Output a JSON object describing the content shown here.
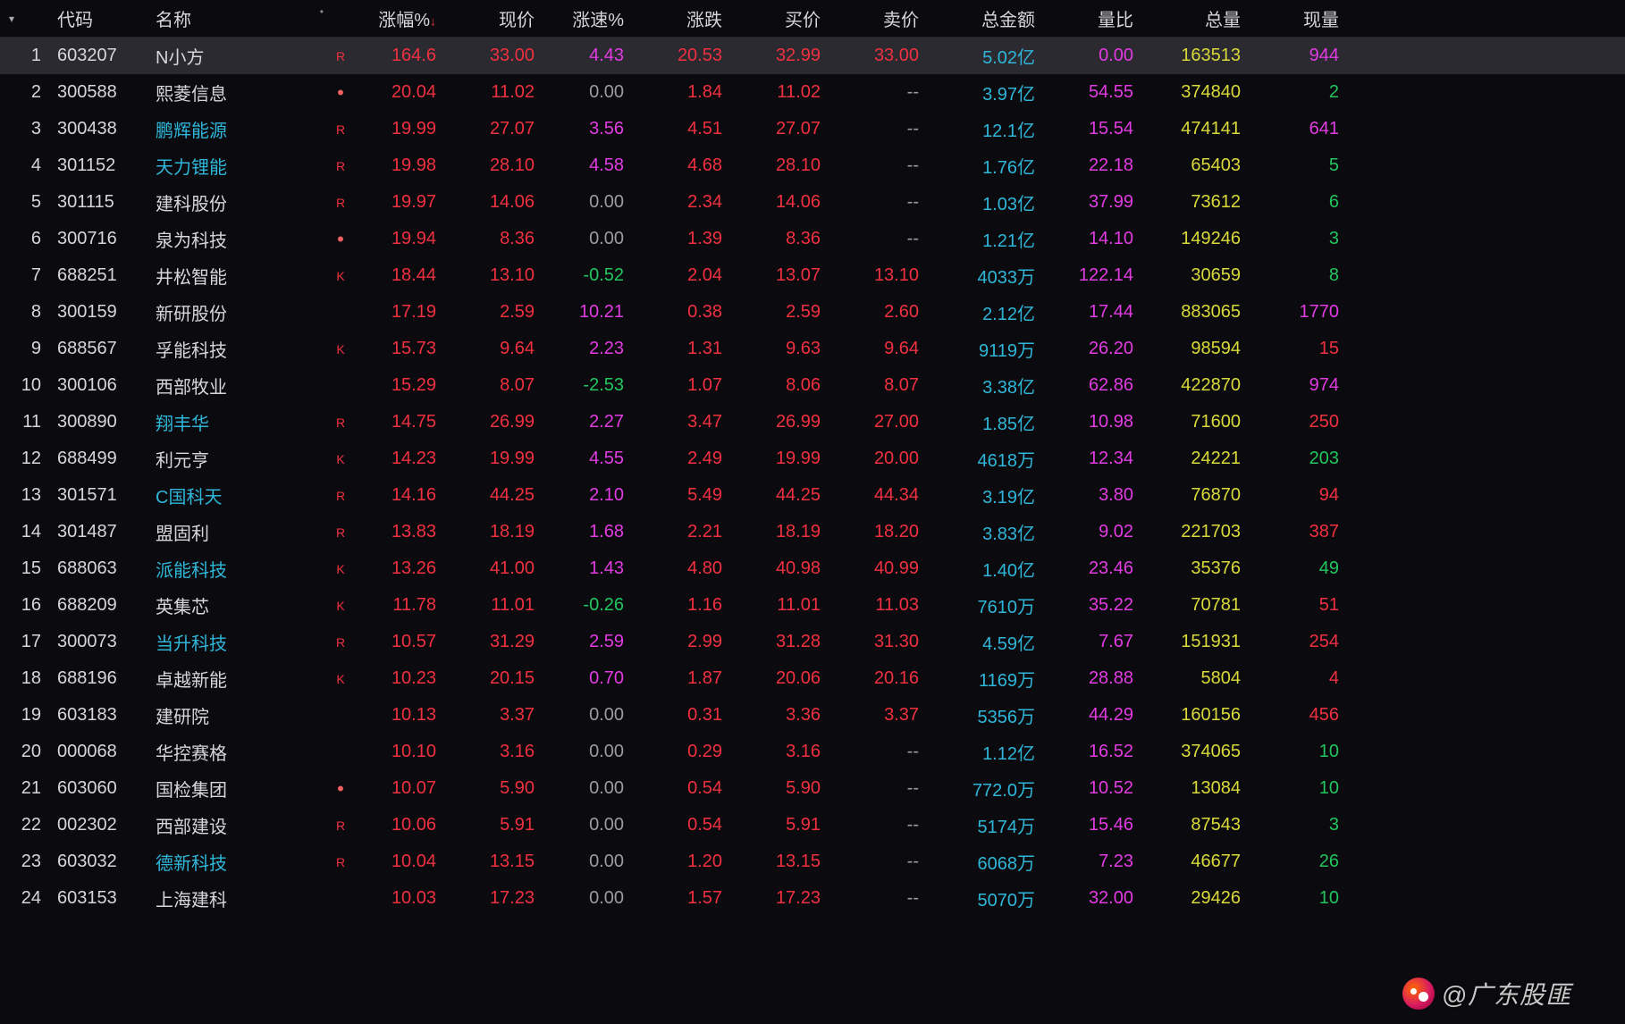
{
  "colors": {
    "bg": "#0b0b0f",
    "text": "#d7d7da",
    "row_highlight": "#2a2a30",
    "red": "#f03040",
    "magenta": "#e23be2",
    "green": "#22c55e",
    "cyan": "#2fb6d9",
    "yellow": "#d9d93a",
    "gray": "#9b9ba0"
  },
  "header": {
    "menu_icon": "▾",
    "code": "代码",
    "name": "名称",
    "name_dot": "•",
    "pct": "涨幅%",
    "sort_icon": "↓",
    "price": "现价",
    "speed": "涨速%",
    "chg": "涨跌",
    "bid": "买价",
    "ask": "卖价",
    "amt": "总金额",
    "ratio": "量比",
    "vol": "总量",
    "cur": "现量"
  },
  "watermark": "@广东股匪",
  "rows": [
    {
      "idx": "1",
      "code": "603207",
      "name": "N小方",
      "name_color": "name-default",
      "flag": "R",
      "pct": "164.6",
      "price": "33.00",
      "speed": "4.43",
      "speed_color": "magenta",
      "chg": "20.53",
      "bid": "32.99",
      "ask": "33.00",
      "ask_color": "red",
      "amt": "5.02亿",
      "ratio": "0.00",
      "vol": "163513",
      "cur": "944",
      "cur_color": "magenta",
      "highlight": true
    },
    {
      "idx": "2",
      "code": "300588",
      "name": "熙菱信息",
      "name_color": "name-default",
      "flag": "•",
      "flag_class": "dot",
      "pct": "20.04",
      "price": "11.02",
      "speed": "0.00",
      "speed_color": "gray",
      "chg": "1.84",
      "bid": "11.02",
      "ask": "--",
      "ask_color": "dash",
      "amt": "3.97亿",
      "ratio": "54.55",
      "vol": "374840",
      "cur": "2",
      "cur_color": "green"
    },
    {
      "idx": "3",
      "code": "300438",
      "name": "鹏辉能源",
      "name_color": "name-link",
      "flag": "R",
      "pct": "19.99",
      "price": "27.07",
      "speed": "3.56",
      "speed_color": "magenta",
      "chg": "4.51",
      "bid": "27.07",
      "ask": "--",
      "ask_color": "dash",
      "amt": "12.1亿",
      "ratio": "15.54",
      "vol": "474141",
      "cur": "641",
      "cur_color": "magenta"
    },
    {
      "idx": "4",
      "code": "301152",
      "name": "天力锂能",
      "name_color": "name-link",
      "flag": "R",
      "pct": "19.98",
      "price": "28.10",
      "speed": "4.58",
      "speed_color": "magenta",
      "chg": "4.68",
      "bid": "28.10",
      "ask": "--",
      "ask_color": "dash",
      "amt": "1.76亿",
      "ratio": "22.18",
      "vol": "65403",
      "cur": "5",
      "cur_color": "green"
    },
    {
      "idx": "5",
      "code": "301115",
      "name": "建科股份",
      "name_color": "name-default",
      "flag": "R",
      "pct": "19.97",
      "price": "14.06",
      "speed": "0.00",
      "speed_color": "gray",
      "chg": "2.34",
      "bid": "14.06",
      "ask": "--",
      "ask_color": "dash",
      "amt": "1.03亿",
      "ratio": "37.99",
      "vol": "73612",
      "cur": "6",
      "cur_color": "green"
    },
    {
      "idx": "6",
      "code": "300716",
      "name": "泉为科技",
      "name_color": "name-default",
      "flag": "•",
      "flag_class": "dot",
      "pct": "19.94",
      "price": "8.36",
      "speed": "0.00",
      "speed_color": "gray",
      "chg": "1.39",
      "bid": "8.36",
      "ask": "--",
      "ask_color": "dash",
      "amt": "1.21亿",
      "ratio": "14.10",
      "vol": "149246",
      "cur": "3",
      "cur_color": "green"
    },
    {
      "idx": "7",
      "code": "688251",
      "name": "井松智能",
      "name_color": "name-default",
      "flag": "K",
      "pct": "18.44",
      "price": "13.10",
      "speed": "-0.52",
      "speed_color": "green",
      "chg": "2.04",
      "bid": "13.07",
      "ask": "13.10",
      "ask_color": "red",
      "amt": "4033万",
      "ratio": "122.14",
      "vol": "30659",
      "cur": "8",
      "cur_color": "green"
    },
    {
      "idx": "8",
      "code": "300159",
      "name": "新研股份",
      "name_color": "name-default",
      "flag": "",
      "pct": "17.19",
      "price": "2.59",
      "speed": "10.21",
      "speed_color": "magenta",
      "chg": "0.38",
      "bid": "2.59",
      "ask": "2.60",
      "ask_color": "red",
      "amt": "2.12亿",
      "ratio": "17.44",
      "vol": "883065",
      "cur": "1770",
      "cur_color": "magenta"
    },
    {
      "idx": "9",
      "code": "688567",
      "name": "孚能科技",
      "name_color": "name-default",
      "flag": "K",
      "pct": "15.73",
      "price": "9.64",
      "speed": "2.23",
      "speed_color": "magenta",
      "chg": "1.31",
      "bid": "9.63",
      "ask": "9.64",
      "ask_color": "red",
      "amt": "9119万",
      "ratio": "26.20",
      "vol": "98594",
      "cur": "15",
      "cur_color": "red"
    },
    {
      "idx": "10",
      "code": "300106",
      "name": "西部牧业",
      "name_color": "name-default",
      "flag": "",
      "pct": "15.29",
      "price": "8.07",
      "speed": "-2.53",
      "speed_color": "green",
      "chg": "1.07",
      "bid": "8.06",
      "ask": "8.07",
      "ask_color": "red",
      "amt": "3.38亿",
      "ratio": "62.86",
      "vol": "422870",
      "cur": "974",
      "cur_color": "magenta"
    },
    {
      "idx": "11",
      "code": "300890",
      "name": "翔丰华",
      "name_color": "name-link",
      "flag": "R",
      "pct": "14.75",
      "price": "26.99",
      "speed": "2.27",
      "speed_color": "magenta",
      "chg": "3.47",
      "bid": "26.99",
      "ask": "27.00",
      "ask_color": "red",
      "amt": "1.85亿",
      "ratio": "10.98",
      "vol": "71600",
      "cur": "250",
      "cur_color": "red"
    },
    {
      "idx": "12",
      "code": "688499",
      "name": "利元亨",
      "name_color": "name-default",
      "flag": "K",
      "pct": "14.23",
      "price": "19.99",
      "speed": "4.55",
      "speed_color": "magenta",
      "chg": "2.49",
      "bid": "19.99",
      "ask": "20.00",
      "ask_color": "red",
      "amt": "4618万",
      "ratio": "12.34",
      "vol": "24221",
      "cur": "203",
      "cur_color": "green"
    },
    {
      "idx": "13",
      "code": "301571",
      "name": "C国科天",
      "name_color": "name-link",
      "flag": "R",
      "pct": "14.16",
      "price": "44.25",
      "speed": "2.10",
      "speed_color": "magenta",
      "chg": "5.49",
      "bid": "44.25",
      "ask": "44.34",
      "ask_color": "red",
      "amt": "3.19亿",
      "ratio": "3.80",
      "vol": "76870",
      "cur": "94",
      "cur_color": "red"
    },
    {
      "idx": "14",
      "code": "301487",
      "name": "盟固利",
      "name_color": "name-default",
      "flag": "R",
      "pct": "13.83",
      "price": "18.19",
      "speed": "1.68",
      "speed_color": "magenta",
      "chg": "2.21",
      "bid": "18.19",
      "ask": "18.20",
      "ask_color": "red",
      "amt": "3.83亿",
      "ratio": "9.02",
      "vol": "221703",
      "cur": "387",
      "cur_color": "red"
    },
    {
      "idx": "15",
      "code": "688063",
      "name": "派能科技",
      "name_color": "name-link",
      "flag": "K",
      "pct": "13.26",
      "price": "41.00",
      "speed": "1.43",
      "speed_color": "magenta",
      "chg": "4.80",
      "bid": "40.98",
      "ask": "40.99",
      "ask_color": "red",
      "amt": "1.40亿",
      "ratio": "23.46",
      "vol": "35376",
      "cur": "49",
      "cur_color": "green"
    },
    {
      "idx": "16",
      "code": "688209",
      "name": "英集芯",
      "name_color": "name-default",
      "flag": "K",
      "pct": "11.78",
      "price": "11.01",
      "speed": "-0.26",
      "speed_color": "green",
      "chg": "1.16",
      "bid": "11.01",
      "ask": "11.03",
      "ask_color": "red",
      "amt": "7610万",
      "ratio": "35.22",
      "vol": "70781",
      "cur": "51",
      "cur_color": "red"
    },
    {
      "idx": "17",
      "code": "300073",
      "name": "当升科技",
      "name_color": "name-link",
      "flag": "R",
      "pct": "10.57",
      "price": "31.29",
      "speed": "2.59",
      "speed_color": "magenta",
      "chg": "2.99",
      "bid": "31.28",
      "ask": "31.30",
      "ask_color": "red",
      "amt": "4.59亿",
      "ratio": "7.67",
      "vol": "151931",
      "cur": "254",
      "cur_color": "red"
    },
    {
      "idx": "18",
      "code": "688196",
      "name": "卓越新能",
      "name_color": "name-default",
      "flag": "K",
      "pct": "10.23",
      "price": "20.15",
      "speed": "0.70",
      "speed_color": "magenta",
      "chg": "1.87",
      "bid": "20.06",
      "ask": "20.16",
      "ask_color": "red",
      "amt": "1169万",
      "ratio": "28.88",
      "vol": "5804",
      "cur": "4",
      "cur_color": "red"
    },
    {
      "idx": "19",
      "code": "603183",
      "name": "建研院",
      "name_color": "name-default",
      "flag": "",
      "pct": "10.13",
      "price": "3.37",
      "speed": "0.00",
      "speed_color": "gray",
      "chg": "0.31",
      "bid": "3.36",
      "ask": "3.37",
      "ask_color": "red",
      "amt": "5356万",
      "ratio": "44.29",
      "vol": "160156",
      "cur": "456",
      "cur_color": "red"
    },
    {
      "idx": "20",
      "code": "000068",
      "name": "华控赛格",
      "name_color": "name-default",
      "flag": "",
      "pct": "10.10",
      "price": "3.16",
      "speed": "0.00",
      "speed_color": "gray",
      "chg": "0.29",
      "bid": "3.16",
      "ask": "--",
      "ask_color": "dash",
      "amt": "1.12亿",
      "ratio": "16.52",
      "vol": "374065",
      "cur": "10",
      "cur_color": "green"
    },
    {
      "idx": "21",
      "code": "603060",
      "name": "国检集团",
      "name_color": "name-default",
      "flag": "•",
      "flag_class": "dot",
      "pct": "10.07",
      "price": "5.90",
      "speed": "0.00",
      "speed_color": "gray",
      "chg": "0.54",
      "bid": "5.90",
      "ask": "--",
      "ask_color": "dash",
      "amt": "772.0万",
      "ratio": "10.52",
      "vol": "13084",
      "cur": "10",
      "cur_color": "green"
    },
    {
      "idx": "22",
      "code": "002302",
      "name": "西部建设",
      "name_color": "name-default",
      "flag": "R",
      "pct": "10.06",
      "price": "5.91",
      "speed": "0.00",
      "speed_color": "gray",
      "chg": "0.54",
      "bid": "5.91",
      "ask": "--",
      "ask_color": "dash",
      "amt": "5174万",
      "ratio": "15.46",
      "vol": "87543",
      "cur": "3",
      "cur_color": "green"
    },
    {
      "idx": "23",
      "code": "603032",
      "name": "德新科技",
      "name_color": "name-link",
      "flag": "R",
      "pct": "10.04",
      "price": "13.15",
      "speed": "0.00",
      "speed_color": "gray",
      "chg": "1.20",
      "bid": "13.15",
      "ask": "--",
      "ask_color": "dash",
      "amt": "6068万",
      "ratio": "7.23",
      "vol": "46677",
      "cur": "26",
      "cur_color": "green"
    },
    {
      "idx": "24",
      "code": "603153",
      "name": "上海建科",
      "name_color": "name-default",
      "flag": "",
      "pct": "10.03",
      "price": "17.23",
      "speed": "0.00",
      "speed_color": "gray",
      "chg": "1.57",
      "bid": "17.23",
      "ask": "--",
      "ask_color": "dash",
      "amt": "5070万",
      "ratio": "32.00",
      "vol": "29426",
      "cur": "10",
      "cur_color": "green"
    }
  ]
}
